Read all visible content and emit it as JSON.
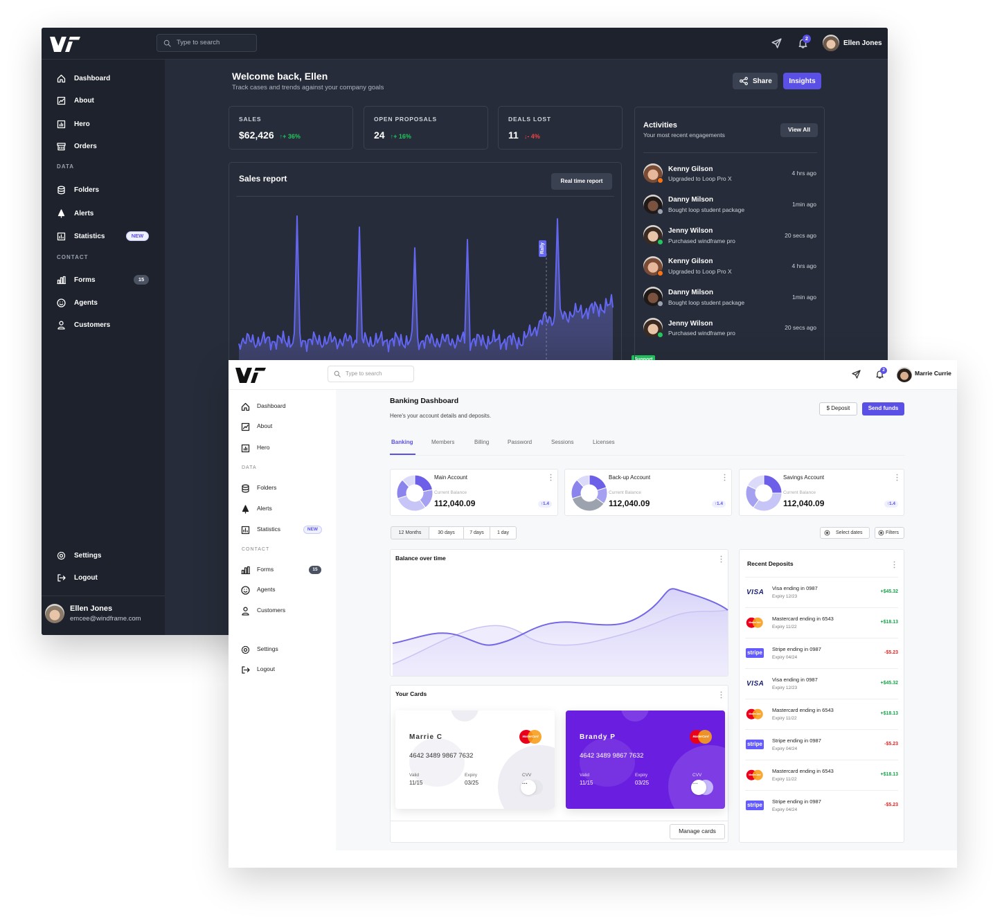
{
  "dark": {
    "search_placeholder": "Type to search",
    "notifications": "2",
    "user": "Ellen Jones",
    "nav_main": [
      {
        "label": "Dashboard"
      },
      {
        "label": "About"
      },
      {
        "label": "Hero"
      },
      {
        "label": "Orders"
      }
    ],
    "data_heading": "DATA",
    "nav_data": [
      {
        "label": "Folders"
      },
      {
        "label": "Alerts"
      },
      {
        "label": "Statistics",
        "badge": "NEW"
      }
    ],
    "contact_heading": "CONTACT",
    "nav_contact": [
      {
        "label": "Forms",
        "badge": "15"
      },
      {
        "label": "Agents"
      },
      {
        "label": "Customers"
      }
    ],
    "nav_bottom": [
      {
        "label": "Settings"
      },
      {
        "label": "Logout"
      }
    ],
    "profile": {
      "name": "Ellen Jones",
      "email": "emcee@windframe.com"
    },
    "welcome": {
      "title": "Welcome back, Ellen",
      "subtitle": "Track cases and trends against your company goals"
    },
    "buttons": {
      "share": "Share",
      "insights": "Insights"
    },
    "stats": [
      {
        "label": "SALES",
        "value": "$62,426",
        "change": "↑+ 36%",
        "color": "#22c55e"
      },
      {
        "label": "OPEN PROPOSALS",
        "value": "24",
        "change": "↑+ 16%",
        "color": "#22c55e"
      },
      {
        "label": "DEALS LOST",
        "value": "11",
        "change": "↓- 4%",
        "color": "#ef4444"
      }
    ],
    "sales_report": {
      "title": "Sales report",
      "button": "Real time report",
      "annotation_top": "Rally",
      "annotation_bottom": "Support"
    },
    "activities": {
      "title": "Activities",
      "subtitle": "Your most recent engagements",
      "button": "View All",
      "items": [
        {
          "name": "Kenny Gilson",
          "action": "Upgraded to Loop Pro X",
          "time": "4 hrs ago"
        },
        {
          "name": "Danny Milson",
          "action": "Bought loop student package",
          "time": "1min ago"
        },
        {
          "name": "Jenny Wilson",
          "action": "Purchased windframe pro",
          "time": "20 secs ago"
        },
        {
          "name": "Kenny Gilson",
          "action": "Upgraded to Loop Pro X",
          "time": "4 hrs ago"
        },
        {
          "name": "Danny Milson",
          "action": "Bought loop student package",
          "time": "1min ago"
        },
        {
          "name": "Jenny Wilson",
          "action": "Purchased windframe pro",
          "time": "20 secs ago"
        }
      ]
    }
  },
  "light": {
    "search_placeholder": "Type to search",
    "notifications": "2",
    "user": "Marrie Currie",
    "nav_main": [
      {
        "label": "Dashboard"
      },
      {
        "label": "About"
      },
      {
        "label": "Hero"
      }
    ],
    "data_heading": "DATA",
    "nav_data": [
      {
        "label": "Folders"
      },
      {
        "label": "Alerts"
      },
      {
        "label": "Statistics",
        "badge": "NEW"
      }
    ],
    "contact_heading": "CONTACT",
    "nav_contact": [
      {
        "label": "Forms",
        "badge": "15"
      },
      {
        "label": "Agents"
      },
      {
        "label": "Customers"
      }
    ],
    "nav_bottom": [
      {
        "label": "Settings"
      },
      {
        "label": "Logout"
      }
    ],
    "title": "Banking Dashboard",
    "subtitle": "Here's your account details and deposits.",
    "buttons": {
      "deposit": "$ Deposit",
      "send": "Send funds"
    },
    "tabs": [
      "Banking",
      "Members",
      "Billing",
      "Password",
      "Sessions",
      "Licenses"
    ],
    "accounts": [
      {
        "name": "Main Account",
        "balance_label": "Current Balance",
        "balance": "112,040.09",
        "change": "↑1.4"
      },
      {
        "name": "Back-up Account",
        "balance_label": "Current Balance",
        "balance": "112,040.09",
        "change": "↑1.4"
      },
      {
        "name": "Savings Account",
        "balance_label": "Current Balance",
        "balance": "112,040.09",
        "change": "↑1.4"
      }
    ],
    "ranges": [
      "12 Months",
      "30 days",
      "7 days",
      "1 day"
    ],
    "select_dates": "Select dates",
    "filters": "Filters",
    "balance_title": "Balance over time",
    "cards_title": "Your Cards",
    "cards": [
      {
        "holder": "Marrie C",
        "brand": "MasterCard",
        "number": "4642 3489 9867 7632",
        "valid_label": "Valid",
        "valid": "11/15",
        "expiry_label": "Expiry",
        "expiry": "03/25",
        "cvv_label": "CVV",
        "cvv": "···"
      },
      {
        "holder": "Brandy P",
        "brand": "MasterCard",
        "number": "4642 3489 9867 7632",
        "valid_label": "Valid",
        "valid": "11/15",
        "expiry_label": "Expiry",
        "expiry": "03/25",
        "cvv_label": "CVV",
        "cvv": "···"
      }
    ],
    "manage_cards": "Manage cards",
    "deposits_title": "Recent Deposits",
    "deposits": [
      {
        "brand": "VISA",
        "title": "Visa ending in 0987",
        "expiry": "Expiry 12/23",
        "amount": "+$45.32",
        "color": "#16a34a"
      },
      {
        "brand": "MasterCard",
        "title": "Mastercard ending in 6543",
        "expiry": "Expiry 11/22",
        "amount": "+$18.13",
        "color": "#16a34a"
      },
      {
        "brand": "stripe",
        "title": "Stripe ending in 0987",
        "expiry": "Expiry 04/24",
        "amount": "-$5.23",
        "color": "#dc2626"
      },
      {
        "brand": "VISA",
        "title": "Visa ending in 0987",
        "expiry": "Expiry 12/23",
        "amount": "+$45.32",
        "color": "#16a34a"
      },
      {
        "brand": "MasterCard",
        "title": "Mastercard ending in 6543",
        "expiry": "Expiry 11/22",
        "amount": "+$18.13",
        "color": "#16a34a"
      },
      {
        "brand": "stripe",
        "title": "Stripe ending in 0987",
        "expiry": "Expiry 04/24",
        "amount": "-$5.23",
        "color": "#dc2626"
      },
      {
        "brand": "MasterCard",
        "title": "Mastercard ending in 6543",
        "expiry": "Expiry 11/22",
        "amount": "+$18.13",
        "color": "#16a34a"
      },
      {
        "brand": "stripe",
        "title": "Stripe ending in 0987",
        "expiry": "Expiry 04/24",
        "amount": "-$5.23",
        "color": "#dc2626"
      }
    ]
  }
}
